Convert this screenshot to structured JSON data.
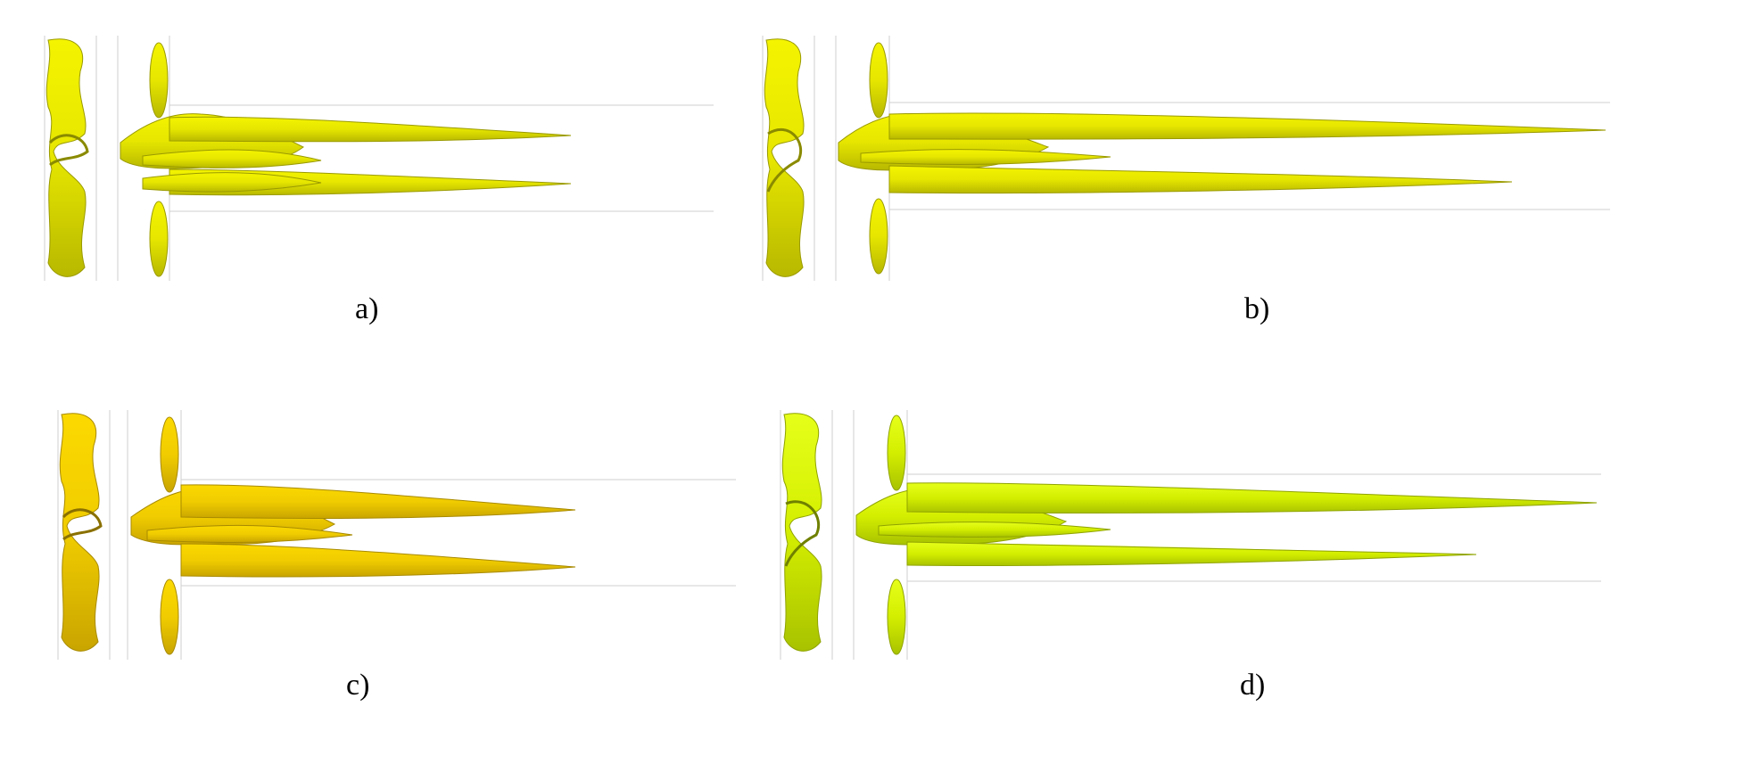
{
  "figure": {
    "panels": [
      {
        "id": "a",
        "caption": "a)",
        "color": "#e6e600",
        "dark": "#9a9a00"
      },
      {
        "id": "b",
        "caption": "b)",
        "color": "#e6e600",
        "dark": "#9a9a00"
      },
      {
        "id": "c",
        "caption": "c)",
        "color": "#f0cc00",
        "dark": "#a88a00"
      },
      {
        "id": "d",
        "caption": "d)",
        "color": "#d4ee00",
        "dark": "#8fa300"
      }
    ]
  }
}
